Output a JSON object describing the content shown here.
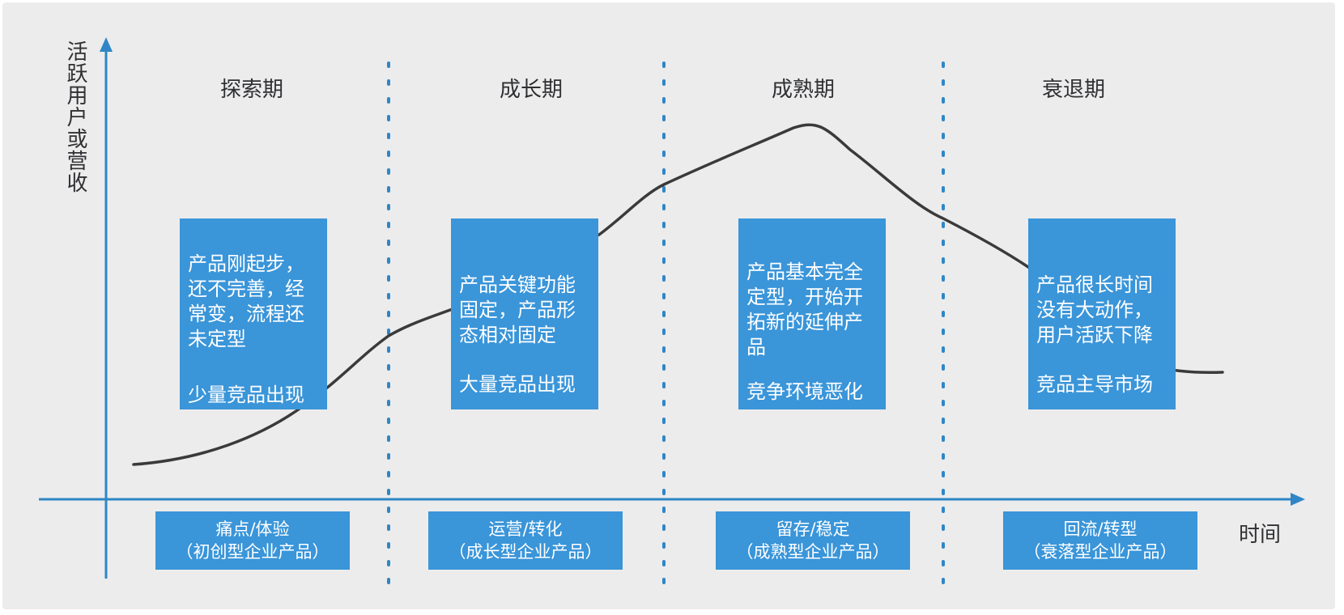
{
  "axes": {
    "y_label": "活跃用户或营收",
    "x_label": "时间"
  },
  "phases": [
    {
      "title": "探索期",
      "description": "产品刚起步，\n还不完善，经\n常变，流程还\n未定型",
      "competition": "少量竞品出现",
      "tag_line1": "痛点/体验",
      "tag_line2": "（初创型企业产品）"
    },
    {
      "title": "成长期",
      "description": "产品关键功能\n固定，产品形\n态相对固定",
      "competition": "大量竞品出现",
      "tag_line1": "运营/转化",
      "tag_line2": "（成长型企业产品）"
    },
    {
      "title": "成熟期",
      "description": "产品基本完全\n定型，开始开\n拓新的延伸产\n品",
      "competition": "竞争环境恶化",
      "tag_line1": "留存/稳定",
      "tag_line2": "（成熟型企业产品）"
    },
    {
      "title": "衰退期",
      "description": "产品很长时间\n没有大动作，\n用户活跃下降",
      "competition": "竞品主导市场",
      "tag_line1": "回流/转型",
      "tag_line2": "（衰落型企业产品）"
    }
  ],
  "colors": {
    "axis": "#2f86c6",
    "box": "#3a95d9",
    "curve": "#3a3a3a",
    "divider": "#2f86c6",
    "background": "#ececec"
  }
}
